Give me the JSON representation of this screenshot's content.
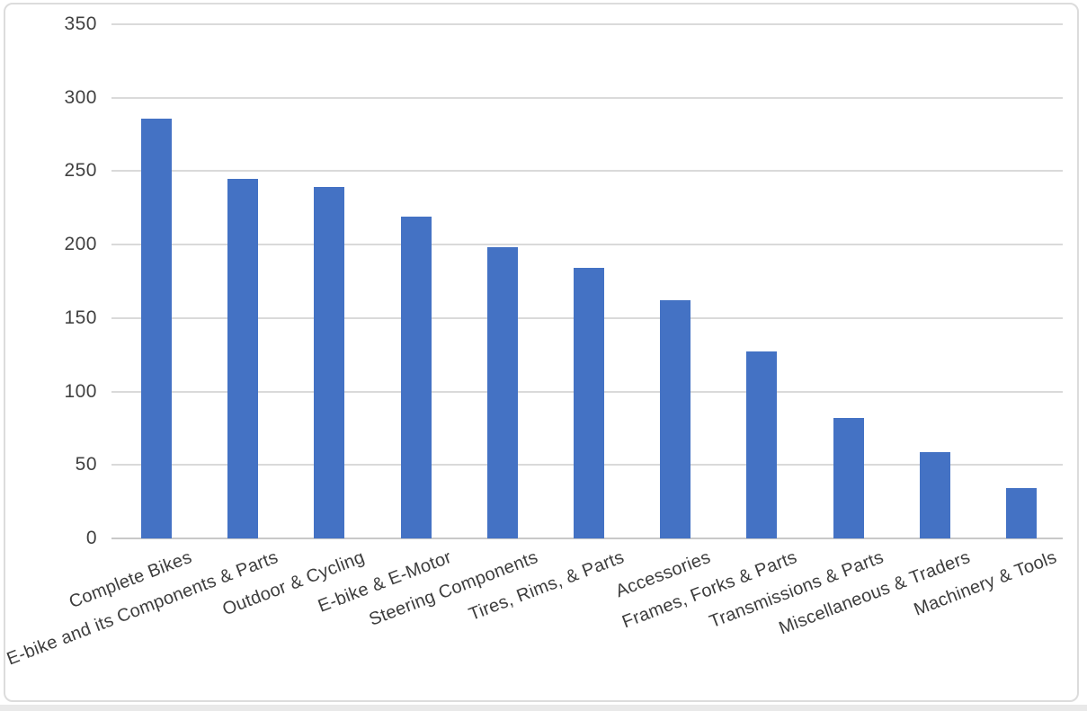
{
  "chart_data": {
    "type": "bar",
    "title": "",
    "xlabel": "",
    "ylabel": "",
    "categories": [
      "Complete Bikes",
      "E-bike and its Components & Parts",
      "Outdoor & Cycling",
      "E-bike & E-Motor",
      "Steering Components",
      "Tires, Rims, & Parts",
      "Accessories",
      "Frames, Forks & Parts",
      "Transmissions & Parts",
      "Miscellaneous & Traders",
      "Machinery & Tools"
    ],
    "values": [
      286,
      245,
      239,
      219,
      198,
      184,
      162,
      127,
      82,
      59,
      34
    ],
    "ylim": [
      0,
      350
    ],
    "yticks": [
      0,
      50,
      100,
      150,
      200,
      250,
      300,
      350
    ],
    "grid": "horizontal-only",
    "legend": "none",
    "bar_color": "#4472c4",
    "gridline_color": "#dadada",
    "baseline_color": "#c9c9c9",
    "axis_tick_label_color": "#414141",
    "category_label_color": "#3d3d3d",
    "frame_border_color": "#dcdcdc",
    "background_color": "#ffffff",
    "category_label_rotation_deg": -21
  }
}
